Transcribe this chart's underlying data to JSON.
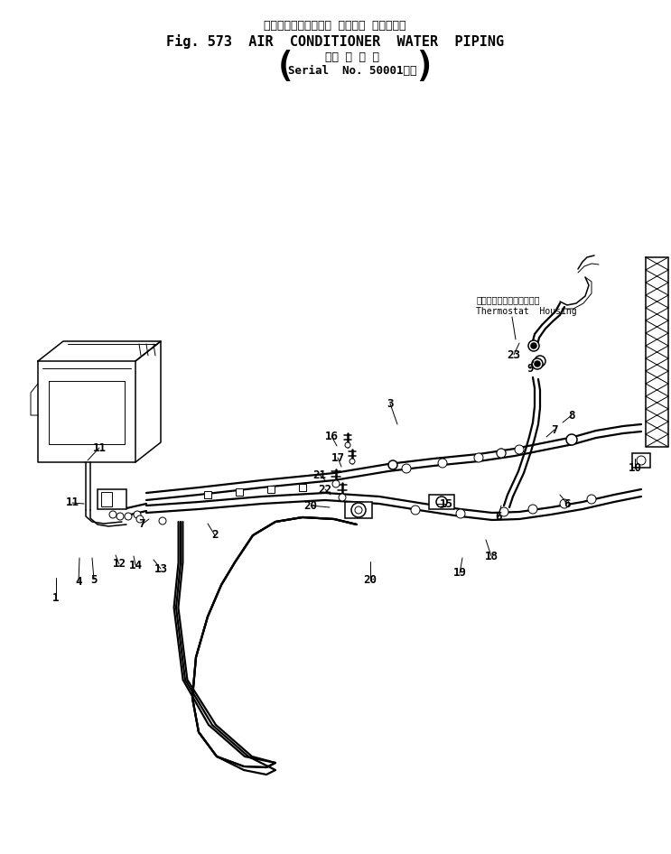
{
  "title_japanese": "エアーコンディショナ ウォータ パイピング",
  "title_english": "Fig. 573  AIR  CONDITIONER  WATER  PIPING",
  "serial_line1": "（適 用 号 機",
  "serial_line2": "Serial  No. 50001～）",
  "thermostat_label_jp": "サーモスタットハウジング",
  "thermostat_label_en": "Thermostat  Housing",
  "bg_color": "#ffffff",
  "line_color": "#000000"
}
